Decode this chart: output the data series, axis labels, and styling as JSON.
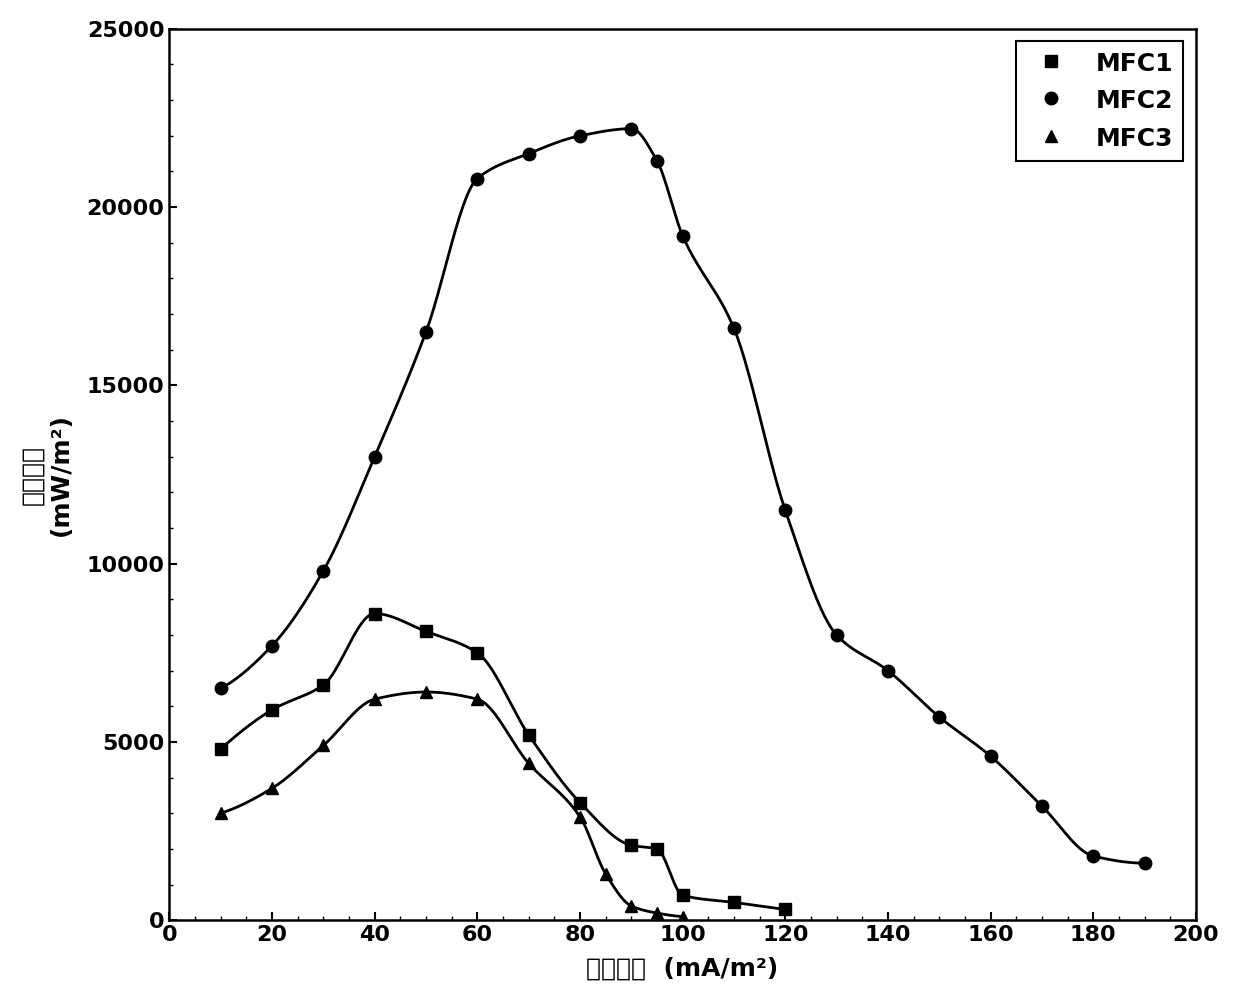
{
  "MFC1": {
    "x": [
      10,
      20,
      30,
      40,
      50,
      60,
      70,
      80,
      90,
      95,
      100,
      110,
      120
    ],
    "y": [
      4800,
      5900,
      6600,
      8600,
      8100,
      7500,
      5200,
      3300,
      2100,
      2000,
      700,
      500,
      300
    ]
  },
  "MFC2": {
    "x": [
      10,
      20,
      30,
      40,
      50,
      60,
      70,
      80,
      90,
      95,
      100,
      110,
      120,
      130,
      140,
      150,
      160,
      170,
      180,
      190
    ],
    "y": [
      6500,
      7700,
      9800,
      13000,
      16500,
      20800,
      21500,
      22000,
      22200,
      21300,
      19200,
      16600,
      11500,
      8000,
      7000,
      5700,
      4600,
      3200,
      1800,
      1600
    ]
  },
  "MFC3": {
    "x": [
      10,
      20,
      30,
      40,
      50,
      60,
      70,
      80,
      85,
      90,
      95,
      100
    ],
    "y": [
      3000,
      3700,
      4900,
      6200,
      6400,
      6200,
      4400,
      2900,
      1300,
      400,
      200,
      100
    ]
  },
  "xlabel_cn": "电流密度",
  "xlabel_unit": "(mA/m²)",
  "ylabel_cn": "功率密度",
  "ylabel_unit": "(mW/m²)",
  "xlim": [
    0,
    200
  ],
  "ylim": [
    0,
    25000
  ],
  "xticks": [
    0,
    20,
    40,
    60,
    80,
    100,
    120,
    140,
    160,
    180,
    200
  ],
  "yticks": [
    0,
    5000,
    10000,
    15000,
    20000,
    25000
  ],
  "line_color": "#000000",
  "bg_color": "#ffffff",
  "legend_labels": [
    "MFC1",
    "MFC2",
    "MFC3"
  ],
  "label_fontsize": 18,
  "tick_fontsize": 16,
  "legend_fontsize": 18
}
